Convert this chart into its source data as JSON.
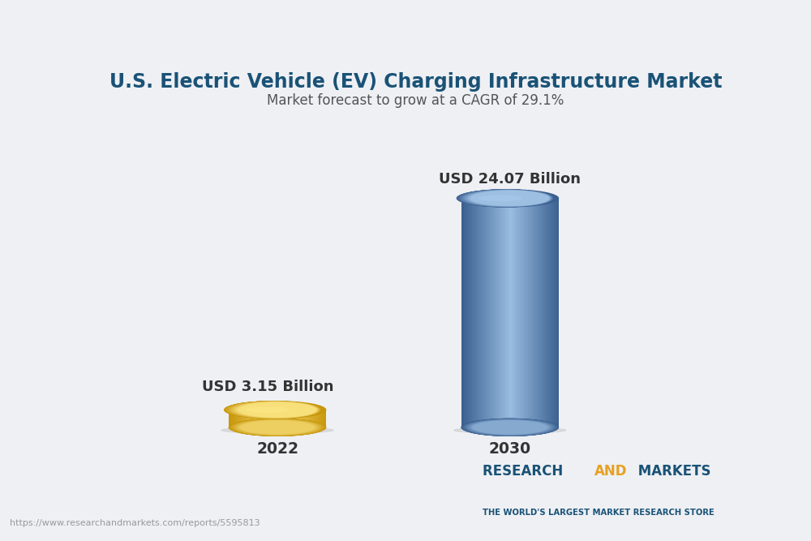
{
  "title": "U.S. Electric Vehicle (EV) Charging Infrastructure Market",
  "subtitle": "Market forecast to grow at a CAGR of 29.1%",
  "title_color": "#1a5276",
  "subtitle_color": "#555555",
  "categories": [
    "2022",
    "2030"
  ],
  "values": [
    3.15,
    24.07
  ],
  "labels": [
    "USD 3.15 Billion",
    "USD 24.07 Billion"
  ],
  "gold_main": "#f5c842",
  "gold_light": "#fde98a",
  "gold_dark": "#c8960a",
  "gold_mid": "#e8b830",
  "blue_main": "#6699cc",
  "blue_light": "#aaccee",
  "blue_dark": "#3a6090",
  "blue_mid": "#5588bb",
  "bg_color": "#eef0f4",
  "label_color": "#333333",
  "url_text": "https://www.researchandmarkets.com/reports/5595813",
  "brand_research": "RESEARCH ",
  "brand_and": "AND",
  "brand_markets": " MARKETS",
  "brand_sub": "THE WORLD'S LARGEST MARKET RESEARCH STORE",
  "brand_color_main": "#1a5276",
  "brand_color_gold": "#e8a020"
}
